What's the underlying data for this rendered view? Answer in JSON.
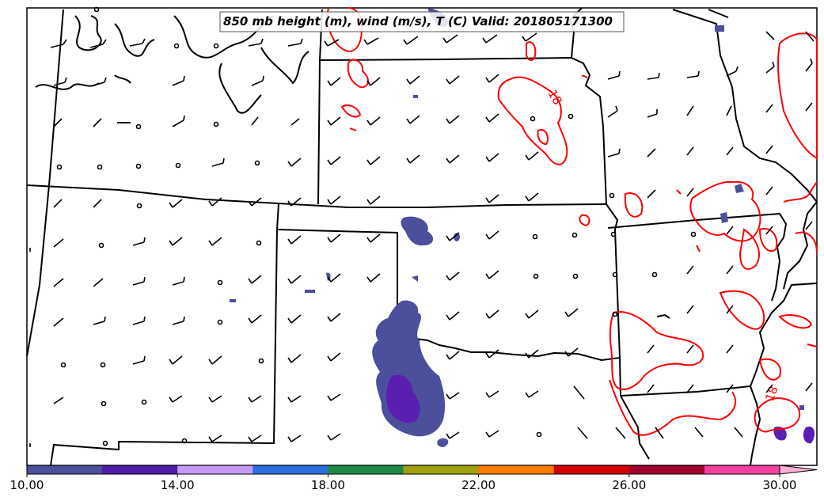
{
  "map": {
    "title": "850 mb height (m), wind (m/s), T (C) Valid: 201805171300",
    "contour_labels": [
      "18",
      "18"
    ],
    "contour_color": "#ff0000",
    "boundary_color": "#000000",
    "precip_colors": [
      "#4b4f9c",
      "#5a1fb0"
    ]
  },
  "colorbar": {
    "min": 10,
    "max": 30,
    "ticks": [
      "10.00",
      "14.00",
      "18.00",
      "22.00",
      "26.00",
      "30.00"
    ],
    "colors": [
      "#4b4f9c",
      "#4f1ca8",
      "#c69af5",
      "#2b6ee0",
      "#1f8a43",
      "#a0a010",
      "#ff7b00",
      "#d40000",
      "#a0002a",
      "#f240a0",
      "#ffb0d8"
    ],
    "extend": "max"
  }
}
